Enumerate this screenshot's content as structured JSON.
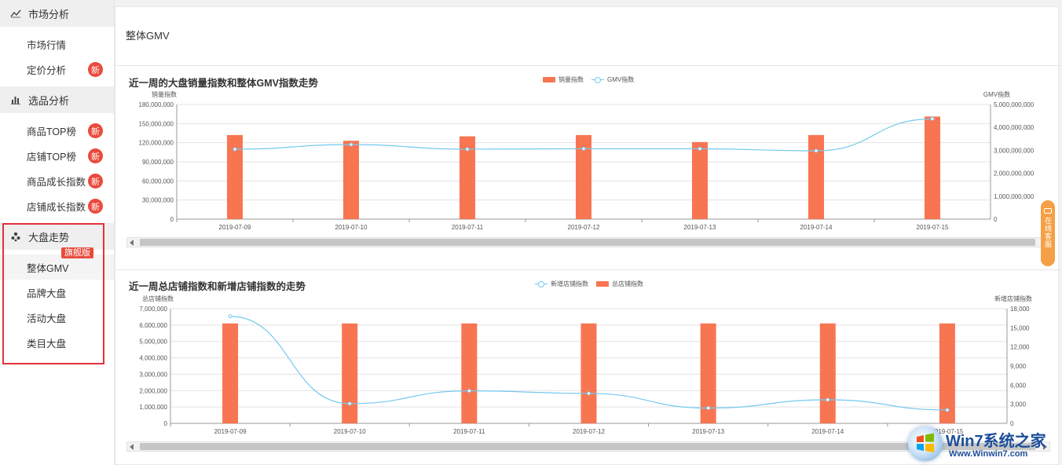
{
  "sidebar": {
    "sections": [
      {
        "label": "市场分析",
        "icon": "trend-line-icon",
        "items": [
          {
            "label": "市场行情",
            "badge": ""
          },
          {
            "label": "定价分析",
            "badge": "新"
          }
        ]
      },
      {
        "label": "选品分析",
        "icon": "bar-chart-icon",
        "items": [
          {
            "label": "商品TOP榜",
            "badge": "新"
          },
          {
            "label": "店铺TOP榜",
            "badge": "新"
          },
          {
            "label": "商品成长指数",
            "badge": "新"
          },
          {
            "label": "店铺成长指数",
            "badge": "新"
          }
        ]
      },
      {
        "label": "大盘走势",
        "icon": "yelp-icon",
        "flag": "旗舰版",
        "items": [
          {
            "label": "整体GMV",
            "badge": "",
            "active": true
          },
          {
            "label": "品牌大盘",
            "badge": ""
          },
          {
            "label": "活动大盘",
            "badge": ""
          },
          {
            "label": "类目大盘",
            "badge": ""
          }
        ]
      }
    ]
  },
  "page": {
    "title": "整体GMV"
  },
  "colors": {
    "bar": "#f87551",
    "line": "#76c9ef",
    "badge": "#ea4a3c",
    "highlight_box": "#e3313b",
    "service": "#f5a046"
  },
  "side_service": {
    "label": "在线客服"
  },
  "watermark": {
    "brand": "Win7系统之家",
    "url": "Www.Winwin7.com"
  },
  "chart_data": [
    {
      "type": "bar",
      "title": "近一周的大盘销量指数和整体GMV指数走势",
      "legend_placement": "top-center",
      "categories": [
        "2019-07-09",
        "2019-07-10",
        "2019-07-11",
        "2019-07-12",
        "2019-07-13",
        "2019-07-14",
        "2019-07-15"
      ],
      "ylabel": "销量指数",
      "ylim": [
        0,
        180000000
      ],
      "yticks": [
        "0",
        "30,000,000",
        "60,000,000",
        "90,000,000",
        "120,000,000",
        "150,000,000",
        "180,000,000"
      ],
      "y2label": "GMV指数",
      "y2lim": [
        0,
        5000000000
      ],
      "y2ticks": [
        "0",
        "1,000,000,000",
        "2,000,000,000",
        "3,000,000,000",
        "4,000,000,000",
        "5,000,000,000"
      ],
      "series": [
        {
          "name": "销量指数",
          "kind": "bar",
          "axis": "left",
          "values": [
            132000000,
            123000000,
            130000000,
            132000000,
            121000000,
            132000000,
            161000000
          ]
        },
        {
          "name": "GMV指数",
          "kind": "line",
          "axis": "right",
          "values": [
            3050000000,
            3250000000,
            3050000000,
            3070000000,
            3070000000,
            2980000000,
            4370000000
          ]
        }
      ],
      "legend_order": [
        "销量指数",
        "GMV指数"
      ],
      "grid": true
    },
    {
      "type": "bar",
      "title": "近一周总店铺指数和新增店铺指数的走势",
      "legend_placement": "top-center",
      "categories": [
        "2019-07-09",
        "2019-07-10",
        "2019-07-11",
        "2019-07-12",
        "2019-07-13",
        "2019-07-14",
        "2019-07-15"
      ],
      "ylabel": "总店铺指数",
      "ylim": [
        0,
        7000000
      ],
      "yticks": [
        "0",
        "1,000,000",
        "2,000,000",
        "3,000,000",
        "4,000,000",
        "5,000,000",
        "6,000,000",
        "7,000,000"
      ],
      "y2label": "新增店铺指数",
      "y2lim": [
        0,
        18000
      ],
      "y2ticks": [
        "0",
        "3,000",
        "6,000",
        "9,000",
        "12,000",
        "15,000",
        "18,000"
      ],
      "series": [
        {
          "name": "新增店铺指数",
          "kind": "line",
          "axis": "right",
          "values": [
            16800,
            3100,
            5100,
            4700,
            2400,
            3700,
            2100
          ]
        },
        {
          "name": "总店铺指数",
          "kind": "bar",
          "axis": "left",
          "values": [
            6100000,
            6100000,
            6100000,
            6100000,
            6100000,
            6100000,
            6100000
          ]
        }
      ],
      "legend_order": [
        "新增店铺指数",
        "总店铺指数"
      ],
      "grid": true
    }
  ]
}
